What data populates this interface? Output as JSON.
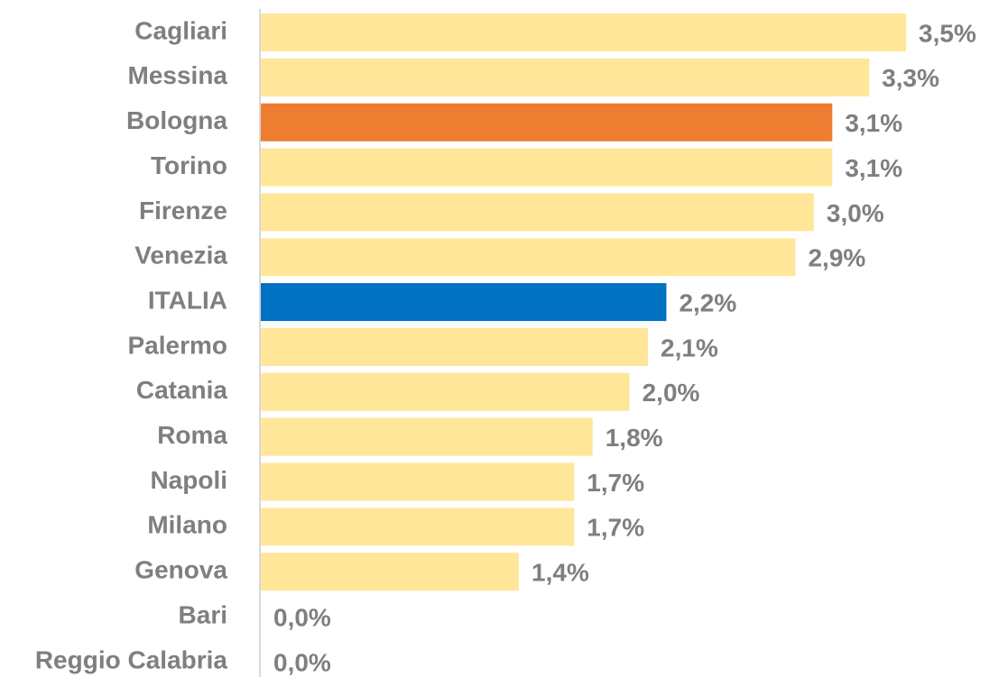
{
  "chart_data": {
    "type": "bar",
    "orientation": "horizontal",
    "categories": [
      "Cagliari",
      "Messina",
      "Bologna",
      "Torino",
      "Firenze",
      "Venezia",
      "ITALIA",
      "Palermo",
      "Catania",
      "Roma",
      "Napoli",
      "Milano",
      "Genova",
      "Bari",
      "Reggio Calabria"
    ],
    "values": [
      3.5,
      3.3,
      3.1,
      3.1,
      3.0,
      2.9,
      2.2,
      2.1,
      2.0,
      1.8,
      1.7,
      1.7,
      1.4,
      0.0,
      0.0
    ],
    "value_labels": [
      "3,5%",
      "3,3%",
      "3,1%",
      "3,1%",
      "3,0%",
      "2,9%",
      "2,2%",
      "2,1%",
      "2,0%",
      "1,8%",
      "1,7%",
      "1,7%",
      "1,4%",
      "0,0%",
      "0,0%"
    ],
    "colors": [
      "#ffe699",
      "#ffe699",
      "#ed7d31",
      "#ffe699",
      "#ffe699",
      "#ffe699",
      "#0070c0",
      "#ffe699",
      "#ffe699",
      "#ffe699",
      "#ffe699",
      "#ffe699",
      "#ffe699",
      "#ffe699",
      "#ffe699"
    ]
  }
}
